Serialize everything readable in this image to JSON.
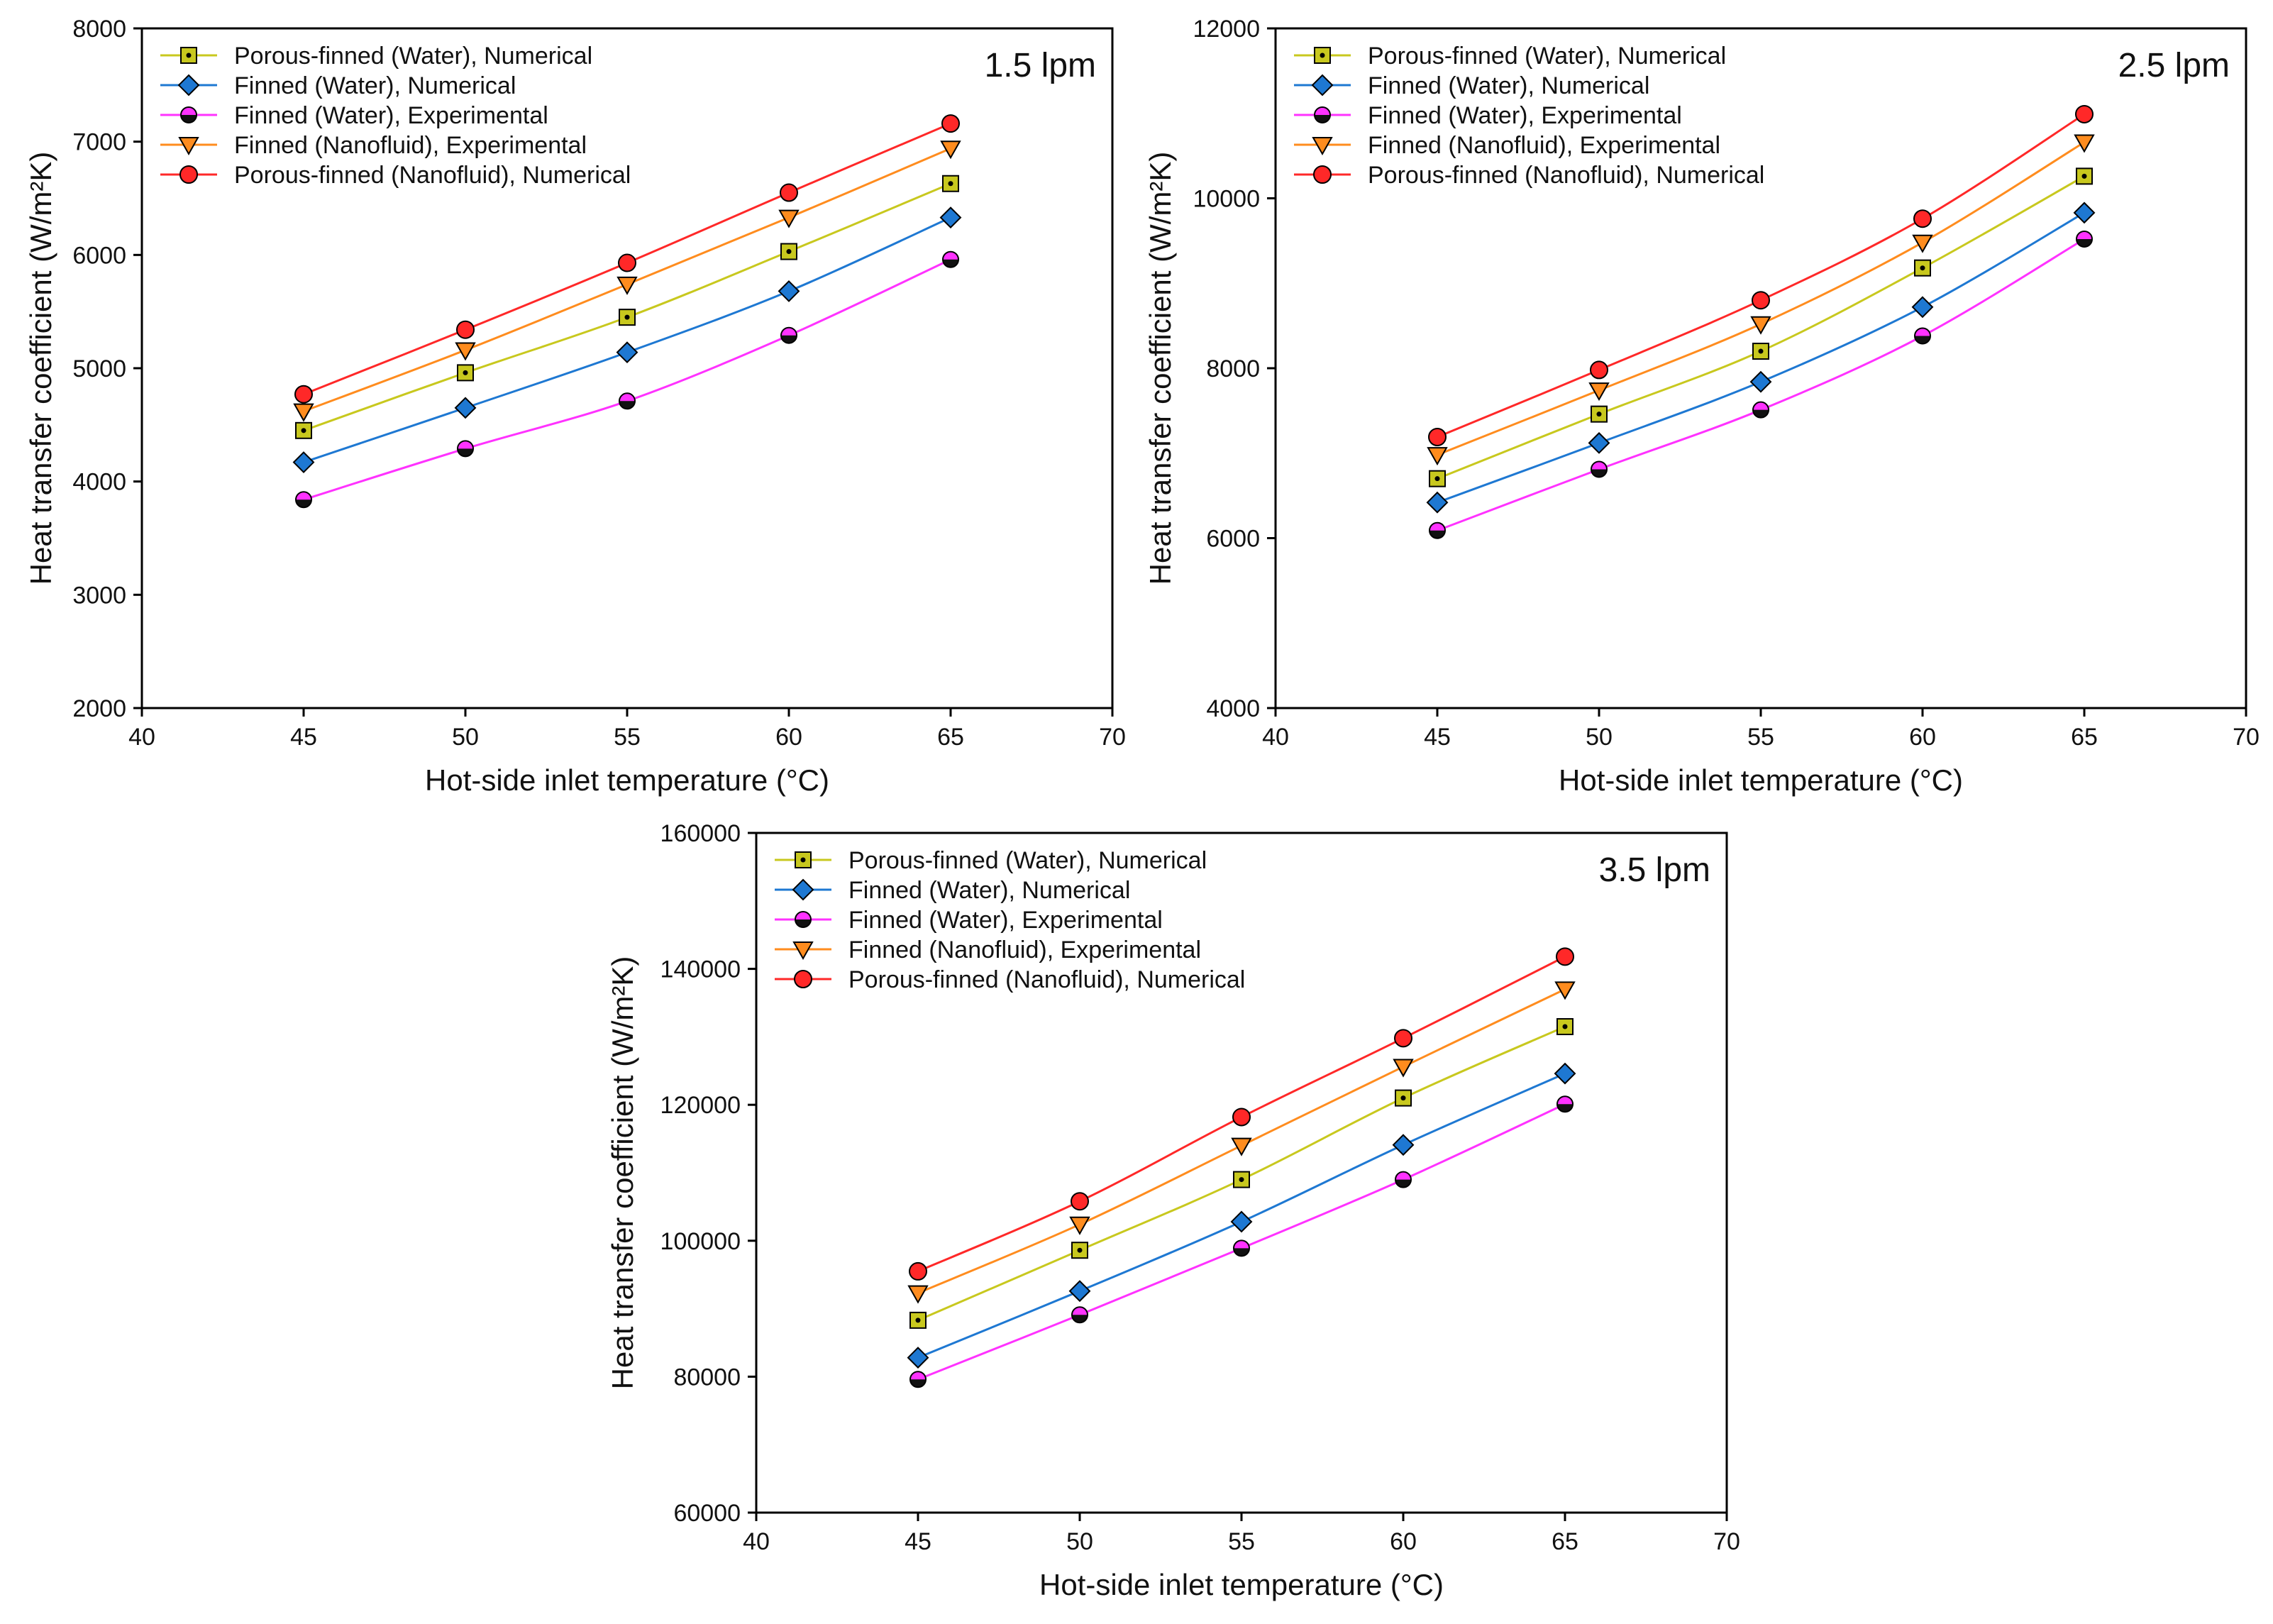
{
  "figure": {
    "colors": {
      "porous_water": "#c8c81e",
      "finned_water": "#1e78d2",
      "finned_water_exp": "#ff32ff",
      "finned_nano": "#ff8c1e",
      "porous_nano": "#ff2828"
    }
  },
  "chart_data": [
    {
      "type": "line",
      "annotation": "1.5 lpm",
      "xlabel": "Hot-side inlet temperature (°C)",
      "ylabel": "Heat transfer coefficient (W/m²K)",
      "xlim": [
        40,
        70
      ],
      "ylim": [
        2000,
        8000
      ],
      "xticks": [
        "40",
        "45",
        "50",
        "55",
        "60",
        "65",
        "70"
      ],
      "yticks": [
        "2000",
        "3000",
        "4000",
        "5000",
        "6000",
        "7000",
        "8000"
      ],
      "legend_position": "top-left",
      "x": [
        45,
        50,
        55,
        60,
        65
      ],
      "series": [
        {
          "name": "Porous-finned (Water), Numerical",
          "values": [
            4450,
            4960,
            5450,
            6030,
            6630
          ]
        },
        {
          "name": "Finned (Water), Numerical",
          "values": [
            4170,
            4650,
            5140,
            5680,
            6330
          ]
        },
        {
          "name": "Finned (Water), Experimental",
          "values": [
            3840,
            4290,
            4710,
            5290,
            5960
          ]
        },
        {
          "name": "Finned (Nanofluid), Experimental",
          "values": [
            4620,
            5160,
            5740,
            6330,
            6940
          ]
        },
        {
          "name": "Porous-finned (Nanofluid), Numerical",
          "values": [
            4770,
            5340,
            5930,
            6550,
            7160
          ]
        }
      ]
    },
    {
      "type": "line",
      "annotation": "2.5 lpm",
      "xlabel": "Hot-side inlet temperature (°C)",
      "ylabel": "Heat transfer coefficient (W/m²K)",
      "xlim": [
        40,
        70
      ],
      "ylim": [
        4000,
        12000
      ],
      "xticks": [
        "40",
        "45",
        "50",
        "55",
        "60",
        "65",
        "70"
      ],
      "yticks": [
        "4000",
        "6000",
        "8000",
        "10000",
        "12000"
      ],
      "legend_position": "top-left",
      "x": [
        45,
        50,
        55,
        60,
        65
      ],
      "series": [
        {
          "name": "Porous-finned (Water), Numerical",
          "values": [
            6700,
            7460,
            8200,
            9180,
            10260
          ]
        },
        {
          "name": "Finned (Water), Numerical",
          "values": [
            6420,
            7120,
            7840,
            8720,
            9830
          ]
        },
        {
          "name": "Finned (Water), Experimental",
          "values": [
            6090,
            6810,
            7510,
            8380,
            9520
          ]
        },
        {
          "name": "Finned (Nanofluid), Experimental",
          "values": [
            6980,
            7740,
            8520,
            9480,
            10660
          ]
        },
        {
          "name": "Porous-finned (Nanofluid), Numerical",
          "values": [
            7190,
            7980,
            8800,
            9760,
            10990
          ]
        }
      ]
    },
    {
      "type": "line",
      "annotation": "3.5 lpm",
      "xlabel": "Hot-side inlet temperature (°C)",
      "ylabel": "Heat transfer coefficient (W/m²K)",
      "xlim": [
        40,
        70
      ],
      "ylim": [
        60000,
        160000
      ],
      "xticks": [
        "40",
        "45",
        "50",
        "55",
        "60",
        "65",
        "70"
      ],
      "yticks": [
        "60000",
        "80000",
        "100000",
        "120000",
        "140000",
        "160000"
      ],
      "legend_position": "top-left",
      "x": [
        45,
        50,
        55,
        60,
        65
      ],
      "series": [
        {
          "name": "Porous-finned (Water), Numerical",
          "values": [
            88300,
            98600,
            109000,
            121000,
            131500
          ]
        },
        {
          "name": "Finned (Water), Numerical",
          "values": [
            82800,
            92600,
            102800,
            114100,
            124600
          ]
        },
        {
          "name": "Finned (Water), Experimental",
          "values": [
            79600,
            89100,
            98900,
            109000,
            120100
          ]
        },
        {
          "name": "Finned (Nanofluid), Experimental",
          "values": [
            92300,
            102400,
            114000,
            125600,
            137000
          ]
        },
        {
          "name": "Porous-finned (Nanofluid), Numerical",
          "values": [
            95500,
            105800,
            118200,
            129800,
            141800
          ]
        }
      ]
    }
  ]
}
